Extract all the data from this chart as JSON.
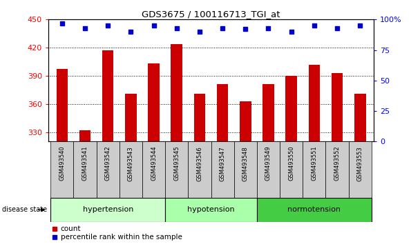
{
  "title": "GDS3675 / 100116713_TGI_at",
  "samples": [
    "GSM493540",
    "GSM493541",
    "GSM493542",
    "GSM493543",
    "GSM493544",
    "GSM493545",
    "GSM493546",
    "GSM493547",
    "GSM493548",
    "GSM493549",
    "GSM493550",
    "GSM493551",
    "GSM493552",
    "GSM493553"
  ],
  "bar_values": [
    397,
    332,
    417,
    371,
    403,
    424,
    371,
    381,
    363,
    381,
    390,
    402,
    393,
    371
  ],
  "percentile_values": [
    97,
    93,
    95,
    90,
    95,
    93,
    90,
    93,
    92,
    93,
    90,
    95,
    93,
    95
  ],
  "bar_color": "#cc0000",
  "dot_color": "#0000cc",
  "ylim_left": [
    320,
    450
  ],
  "ylim_right": [
    0,
    100
  ],
  "yticks_left": [
    330,
    360,
    390,
    420,
    450
  ],
  "yticks_right": [
    0,
    25,
    50,
    75,
    100
  ],
  "yticklabels_right": [
    "0",
    "25",
    "50",
    "75",
    "100%"
  ],
  "groups": [
    {
      "label": "hypertension",
      "start": 0,
      "end": 5,
      "color": "#ccffcc"
    },
    {
      "label": "hypotension",
      "start": 5,
      "end": 9,
      "color": "#aaffaa"
    },
    {
      "label": "normotension",
      "start": 9,
      "end": 14,
      "color": "#44cc44"
    }
  ],
  "disease_state_label": "disease state",
  "legend_count_label": "count",
  "legend_pct_label": "percentile rank within the sample",
  "background_color": "#ffffff",
  "plot_bg_color": "#ffffff",
  "tick_area_color": "#cccccc",
  "bar_width": 0.5,
  "n_samples": 14
}
